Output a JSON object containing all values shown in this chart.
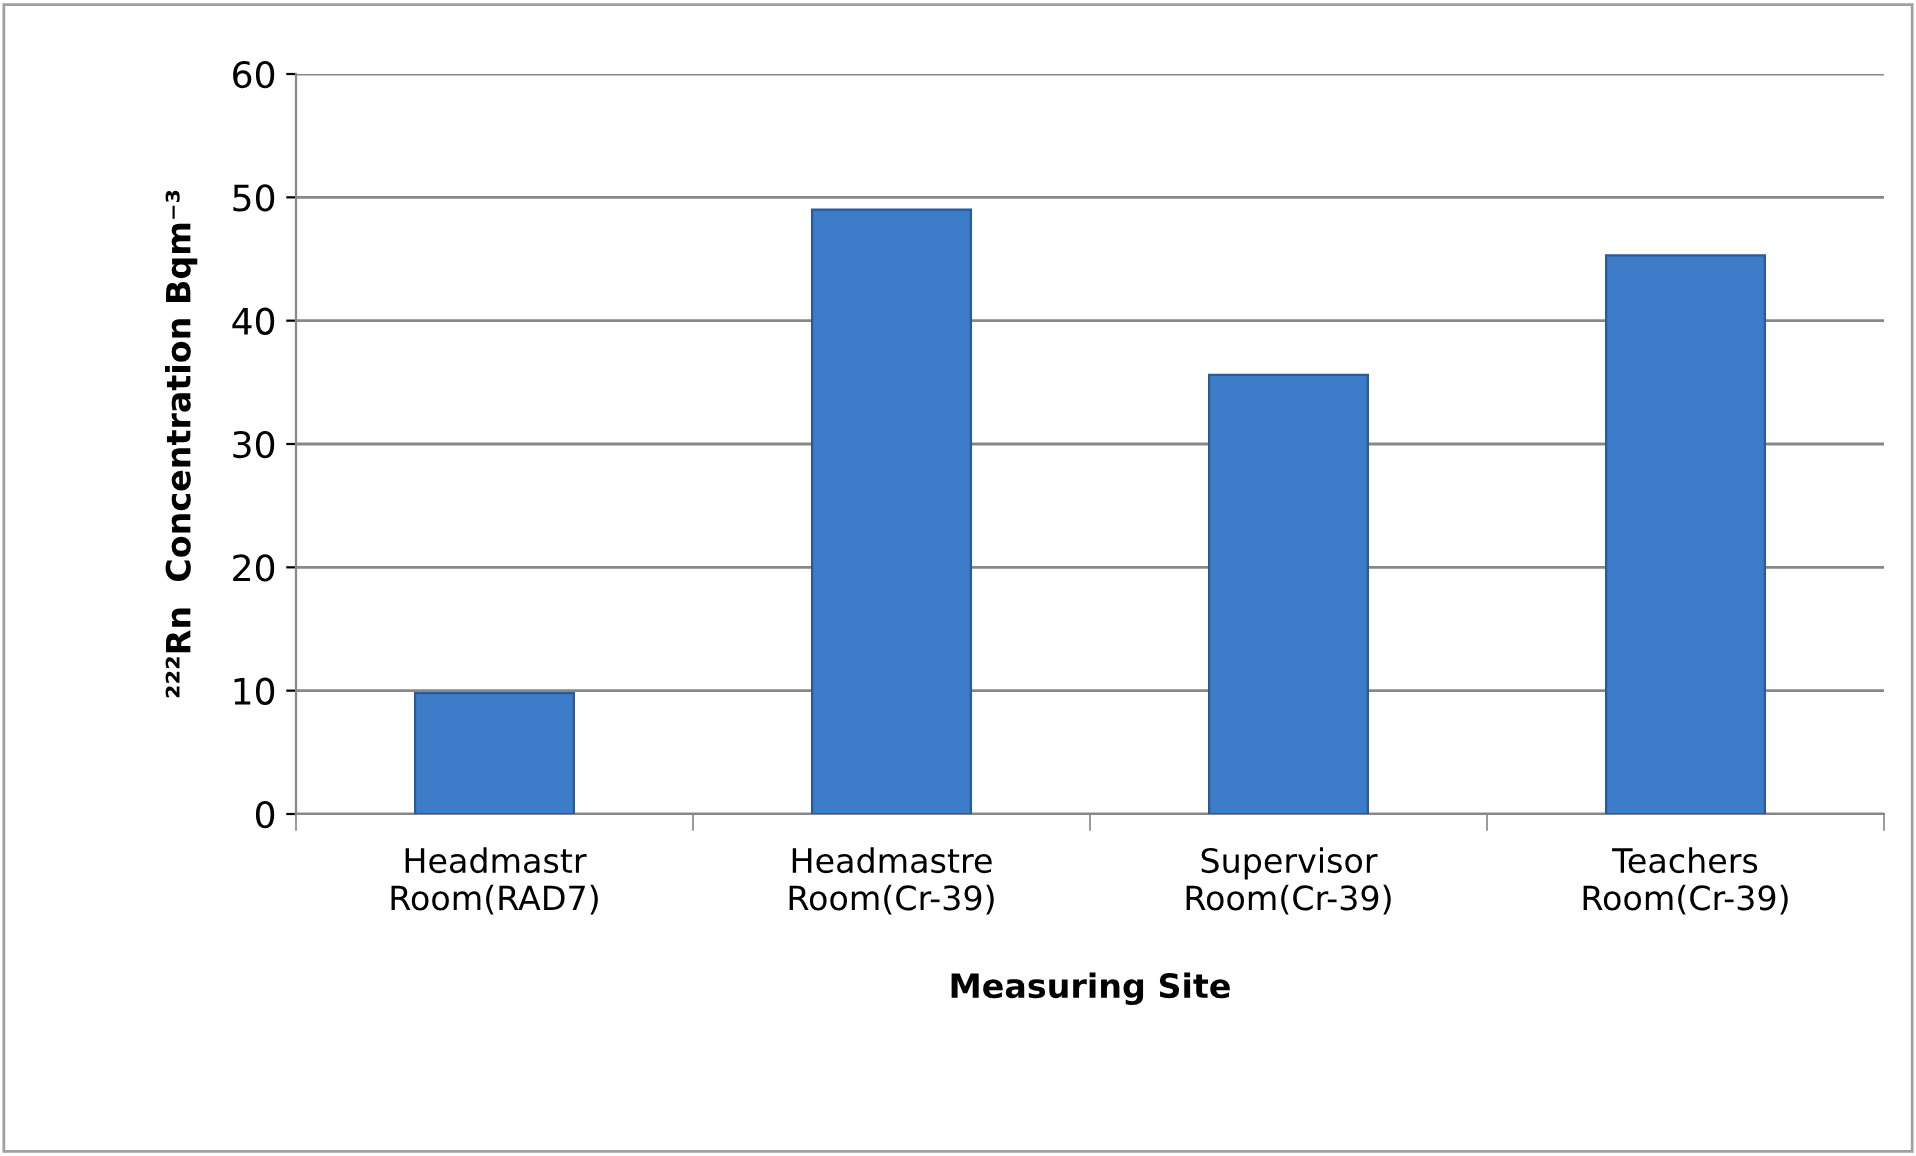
{
  "chart_data": {
    "type": "bar",
    "xlabel": "Measuring Site",
    "ylabel": "²²²Rn  Concentration Bqm⁻³",
    "categories": [
      "Headmastr\nRoom(RAD7)",
      "Headmastre\nRoom(Cr-39)",
      "Supervisor\nRoom(Cr-39)",
      "Teachers\nRoom(Cr-39)"
    ],
    "values": [
      9.8,
      49.0,
      35.6,
      45.3
    ],
    "color": "#3d7cc9",
    "ylim": [
      0,
      60
    ],
    "yticks": [
      0,
      10,
      20,
      30,
      40,
      50,
      60
    ],
    "grid": "y",
    "legend": false
  }
}
